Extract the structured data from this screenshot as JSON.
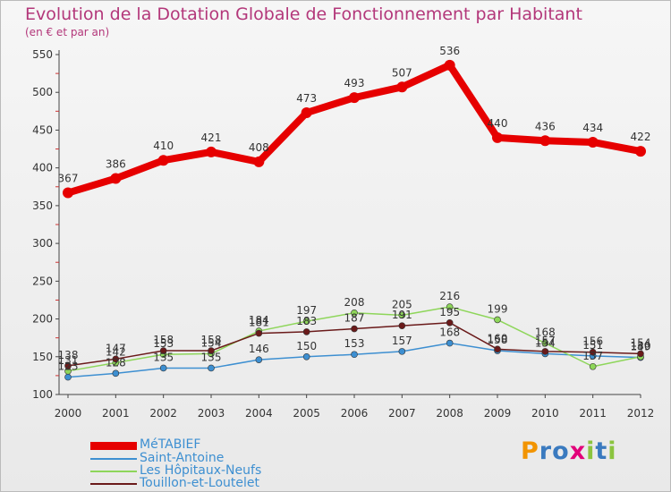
{
  "title": "Evolution de la Dotation Globale de Fonctionnement par Habitant",
  "subtitle": "(en € et par an)",
  "logo": {
    "letters": [
      "P",
      "r",
      "o",
      "x",
      "i",
      "t",
      "i"
    ],
    "colors": [
      "#f29400",
      "#3a7abf",
      "#3a7abf",
      "#e2007a",
      "#8bc43f",
      "#3a7abf",
      "#8bc43f"
    ]
  },
  "chart_data": {
    "type": "line",
    "x": [
      "2000",
      "2001",
      "2002",
      "2003",
      "2004",
      "2005",
      "2006",
      "2007",
      "2008",
      "2009",
      "2010",
      "2011",
      "2012"
    ],
    "ylim": [
      100,
      550
    ],
    "yticks": [
      "100",
      "150",
      "200",
      "250",
      "300",
      "350",
      "400",
      "450",
      "500",
      "550"
    ],
    "grid": false,
    "legend_position": "bottom-left",
    "series": [
      {
        "name": "MéTABIEF",
        "color": "#e60000",
        "values": [
          367,
          386,
          410,
          421,
          408,
          473,
          493,
          507,
          536,
          440,
          436,
          434,
          422
        ],
        "labels": [
          "367",
          "386",
          "410",
          "421",
          "408",
          "473",
          "493",
          "507",
          "536",
          "440",
          "436",
          "434",
          "422"
        ]
      },
      {
        "name": "Saint-Antoine",
        "color": "#3d8fd1",
        "values": [
          123,
          128,
          135,
          135,
          146,
          150,
          153,
          157,
          168,
          158,
          154,
          151,
          149
        ],
        "labels": [
          "123",
          "128",
          "135",
          "135",
          "146",
          "150",
          "153",
          "157",
          "168",
          "158",
          "154",
          "151",
          "149"
        ]
      },
      {
        "name": "Les Hôpitaux-Neufs",
        "color": "#8ed65a",
        "values": [
          131,
          142,
          153,
          154,
          184,
          197,
          208,
          205,
          216,
          199,
          168,
          137,
          150
        ],
        "labels": [
          "131",
          "142",
          "153",
          "154",
          "184",
          "197",
          "208",
          "205",
          "216",
          "199",
          "168",
          "137",
          "150"
        ]
      },
      {
        "name": "Touillon-et-Loutelet",
        "color": "#6a1a1a",
        "values": [
          138,
          147,
          158,
          158,
          181,
          183,
          187,
          191,
          195,
          160,
          157,
          156,
          154
        ],
        "labels": [
          "138",
          "147",
          "158",
          "158",
          "181",
          "183",
          "187",
          "191",
          "195",
          "160",
          "157",
          "156",
          "154"
        ]
      }
    ]
  }
}
